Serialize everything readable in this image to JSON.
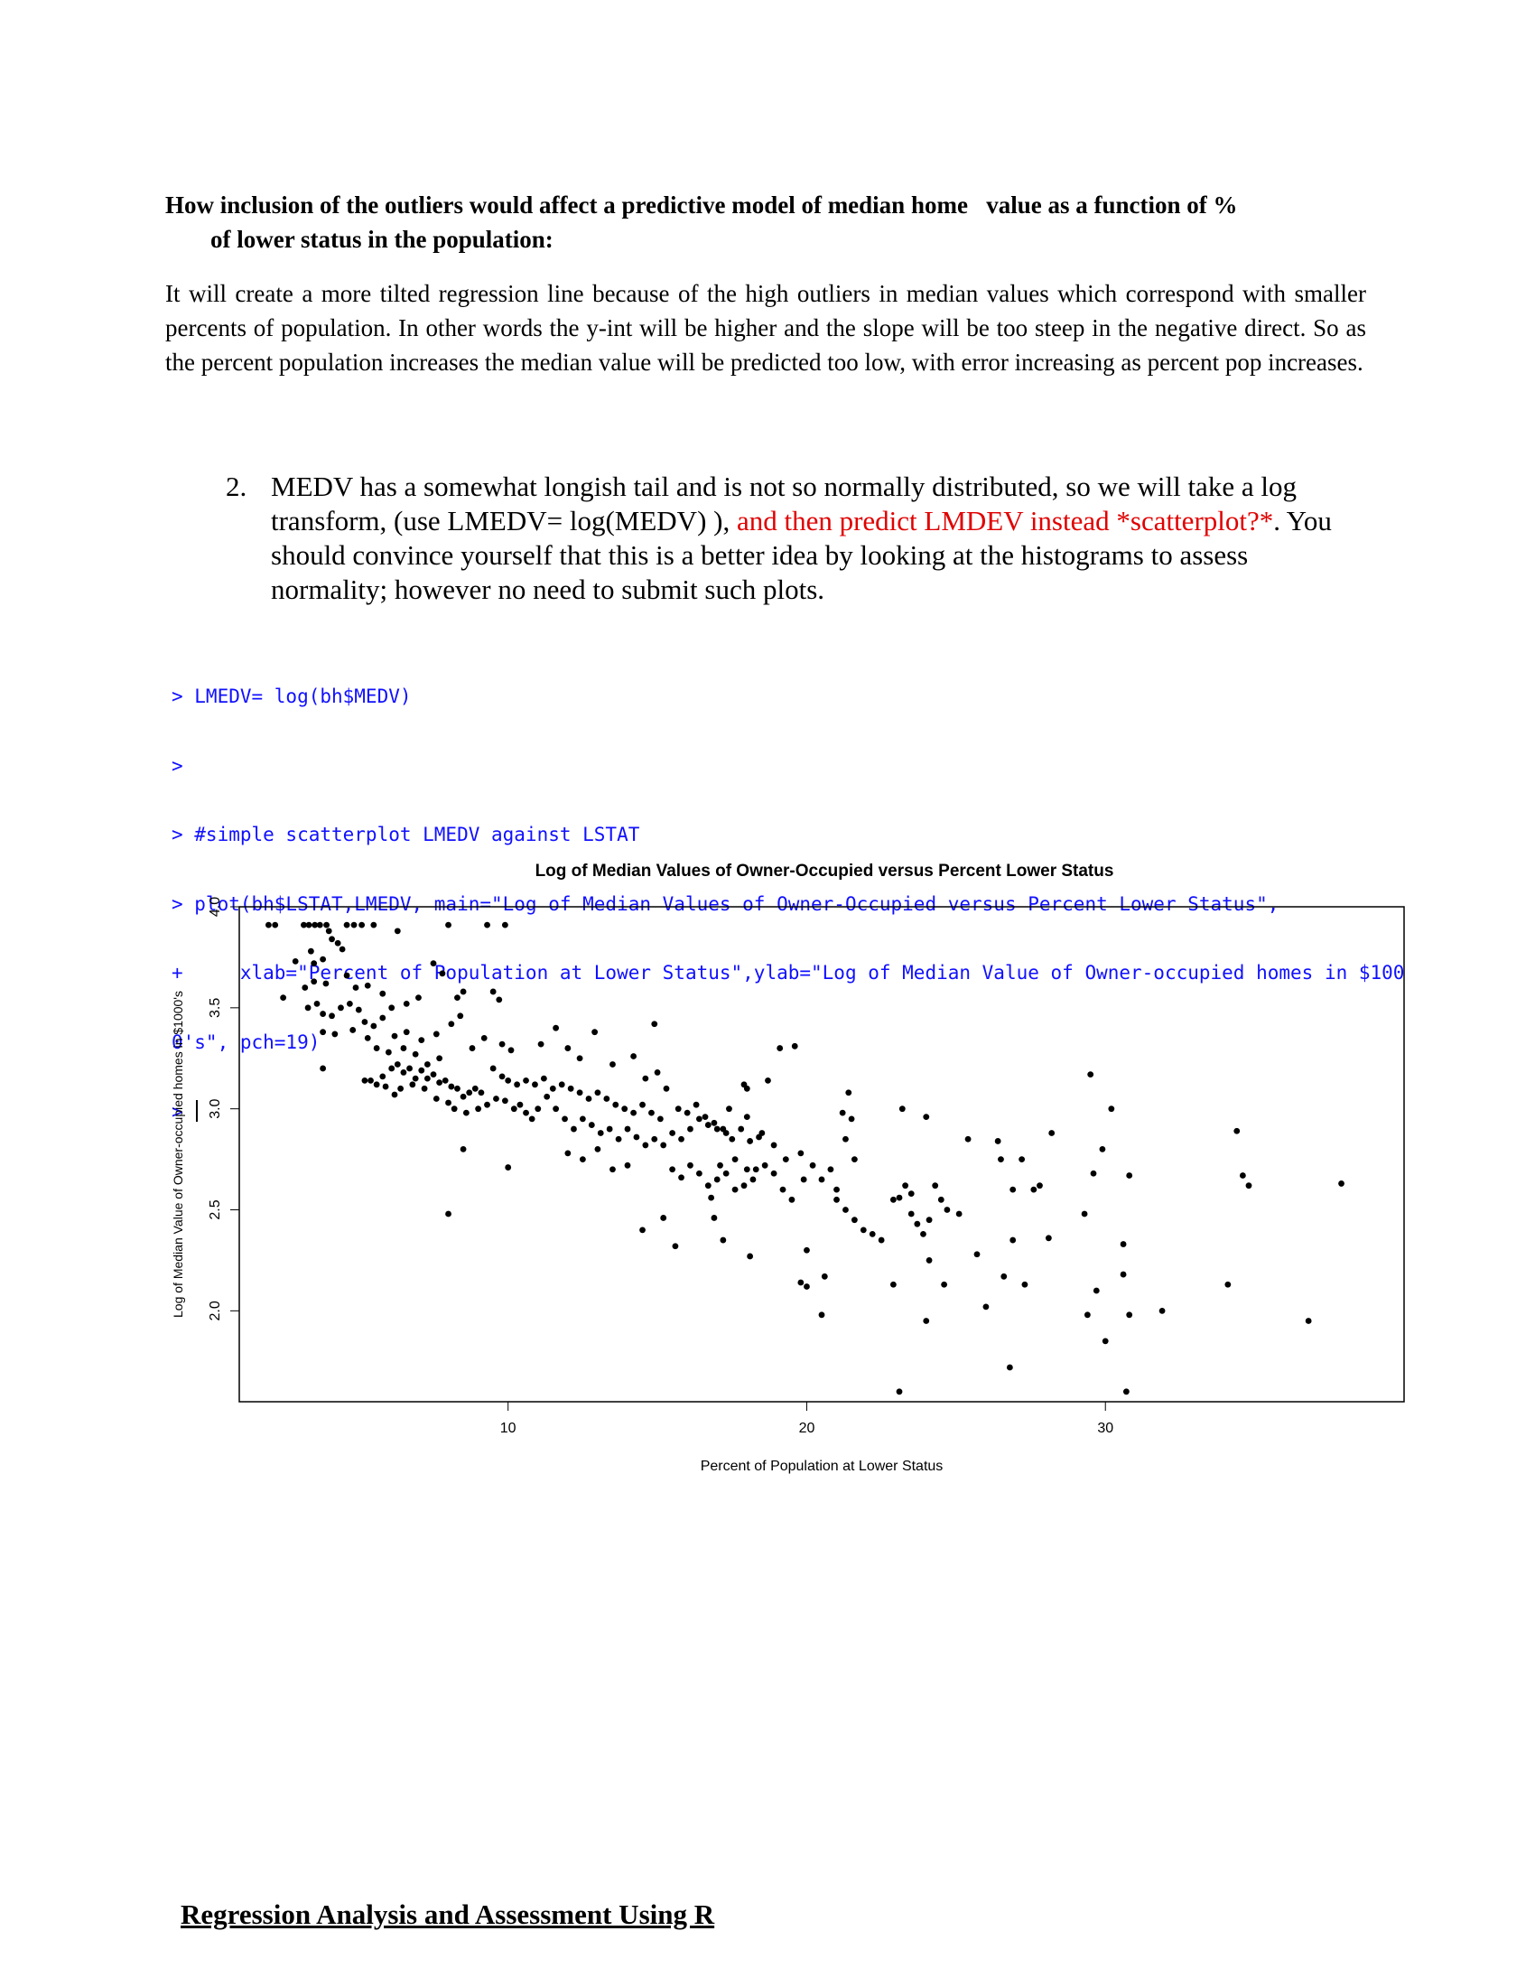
{
  "question_heading": {
    "line1": "How inclusion of the outliers would affect a predictive model of median home   value as a function of %",
    "line2": "of lower status in the population:"
  },
  "answer_paragraph": "It will create a more tilted regression line because of the high outliers in median values which correspond with smaller percents of population. In other words the y-int will be higher and the slope will be too steep in the negative direct. So as the percent population increases the median value will be predicted too low, with error increasing as percent pop increases.",
  "item2": {
    "number": "2.",
    "text_a": "MEDV has a somewhat longish tail and is not so normally distributed, so we will take a log transform, (use LMEDV= log(MEDV) ), ",
    "text_red": "and then predict LMDEV instead *scatterplot?*",
    "text_b": ".  You  should convince yourself that this is a better idea by looking at the histograms to assess  normality; however no need to submit such plots."
  },
  "console_lines": [
    "> LMEDV= log(bh$MEDV)",
    ">",
    "> #simple scatterplot LMEDV against LSTAT",
    "> plot(bh$LSTAT,LMEDV, main=\"Log of Median Values of Owner-Occupied versus Percent Lower Status\",",
    "+     xlab=\"Percent of Population at Lower Status\",ylab=\"Log of Median Value of Owner-occupied homes in $100",
    "0's\", pch=19)",
    "> "
  ],
  "footer_title": "Regression Analysis and Assessment Using R",
  "chart_data": {
    "type": "scatter",
    "title": "Log of Median Values of Owner-Occupied versus Percent Lower Status",
    "xlabel": "Percent of Population at Lower Status",
    "ylabel": "Log of Median Value of Owner-occupied homes in $1000's",
    "x_ticks": [
      10,
      20,
      30
    ],
    "y_ticks": [
      2.0,
      2.5,
      3.0,
      3.5,
      4.0
    ],
    "xlim": [
      1.0,
      40.0
    ],
    "ylim": [
      1.55,
      4.0
    ],
    "grid": false,
    "marker_color": "#000000",
    "points": [
      [
        1.98,
        3.91
      ],
      [
        2.2,
        3.91
      ],
      [
        2.47,
        3.55
      ],
      [
        2.88,
        3.73
      ],
      [
        3.16,
        3.91
      ],
      [
        3.33,
        3.91
      ],
      [
        3.53,
        3.91
      ],
      [
        3.7,
        3.91
      ],
      [
        3.92,
        3.91
      ],
      [
        4.0,
        3.88
      ],
      [
        4.1,
        3.84
      ],
      [
        4.3,
        3.82
      ],
      [
        3.4,
        3.78
      ],
      [
        3.5,
        3.72
      ],
      [
        3.8,
        3.74
      ],
      [
        4.45,
        3.79
      ],
      [
        4.6,
        3.91
      ],
      [
        4.84,
        3.91
      ],
      [
        5.1,
        3.91
      ],
      [
        5.5,
        3.91
      ],
      [
        6.3,
        3.88
      ],
      [
        8.0,
        3.91
      ],
      [
        9.3,
        3.91
      ],
      [
        9.9,
        3.91
      ],
      [
        3.2,
        3.6
      ],
      [
        3.5,
        3.63
      ],
      [
        3.9,
        3.62
      ],
      [
        4.6,
        3.66
      ],
      [
        4.9,
        3.6
      ],
      [
        5.3,
        3.61
      ],
      [
        5.8,
        3.57
      ],
      [
        6.1,
        3.5
      ],
      [
        6.6,
        3.52
      ],
      [
        7.0,
        3.55
      ],
      [
        7.5,
        3.72
      ],
      [
        7.8,
        3.67
      ],
      [
        8.3,
        3.55
      ],
      [
        8.5,
        3.58
      ],
      [
        9.5,
        3.58
      ],
      [
        9.7,
        3.54
      ],
      [
        3.3,
        3.5
      ],
      [
        3.6,
        3.52
      ],
      [
        3.8,
        3.47
      ],
      [
        4.1,
        3.46
      ],
      [
        4.4,
        3.5
      ],
      [
        4.7,
        3.52
      ],
      [
        5.0,
        3.49
      ],
      [
        5.2,
        3.43
      ],
      [
        5.5,
        3.41
      ],
      [
        5.8,
        3.45
      ],
      [
        6.2,
        3.36
      ],
      [
        6.6,
        3.38
      ],
      [
        7.1,
        3.34
      ],
      [
        7.6,
        3.37
      ],
      [
        8.1,
        3.42
      ],
      [
        8.4,
        3.46
      ],
      [
        8.8,
        3.3
      ],
      [
        9.2,
        3.35
      ],
      [
        9.8,
        3.32
      ],
      [
        10.1,
        3.29
      ],
      [
        3.8,
        3.38
      ],
      [
        4.2,
        3.37
      ],
      [
        4.8,
        3.39
      ],
      [
        5.3,
        3.35
      ],
      [
        5.6,
        3.3
      ],
      [
        6.0,
        3.28
      ],
      [
        6.5,
        3.3
      ],
      [
        6.9,
        3.27
      ],
      [
        7.3,
        3.22
      ],
      [
        7.7,
        3.25
      ],
      [
        3.8,
        3.2
      ],
      [
        5.2,
        3.14
      ],
      [
        5.6,
        3.12
      ],
      [
        5.8,
        3.16
      ],
      [
        6.1,
        3.2
      ],
      [
        6.3,
        3.22
      ],
      [
        6.5,
        3.18
      ],
      [
        6.7,
        3.2
      ],
      [
        6.9,
        3.15
      ],
      [
        7.1,
        3.19
      ],
      [
        7.3,
        3.15
      ],
      [
        7.5,
        3.17
      ],
      [
        7.7,
        3.13
      ],
      [
        7.9,
        3.14
      ],
      [
        8.1,
        3.11
      ],
      [
        8.3,
        3.1
      ],
      [
        8.5,
        3.06
      ],
      [
        8.7,
        3.08
      ],
      [
        8.9,
        3.1
      ],
      [
        9.1,
        3.08
      ],
      [
        5.4,
        3.14
      ],
      [
        5.9,
        3.11
      ],
      [
        6.2,
        3.07
      ],
      [
        6.4,
        3.1
      ],
      [
        6.8,
        3.12
      ],
      [
        7.2,
        3.1
      ],
      [
        7.6,
        3.05
      ],
      [
        8.0,
        3.03
      ],
      [
        8.2,
        3.0
      ],
      [
        8.6,
        2.98
      ],
      [
        9.0,
        3.0
      ],
      [
        9.3,
        3.02
      ],
      [
        9.6,
        3.05
      ],
      [
        9.9,
        3.04
      ],
      [
        10.2,
        3.0
      ],
      [
        10.4,
        3.02
      ],
      [
        10.6,
        2.98
      ],
      [
        10.8,
        2.95
      ],
      [
        11.0,
        3.0
      ],
      [
        11.3,
        3.06
      ],
      [
        9.5,
        3.2
      ],
      [
        9.8,
        3.16
      ],
      [
        10.0,
        3.14
      ],
      [
        10.3,
        3.12
      ],
      [
        10.6,
        3.14
      ],
      [
        10.9,
        3.12
      ],
      [
        11.2,
        3.15
      ],
      [
        11.5,
        3.1
      ],
      [
        11.8,
        3.12
      ],
      [
        12.1,
        3.1
      ],
      [
        12.4,
        3.08
      ],
      [
        12.7,
        3.05
      ],
      [
        13.0,
        3.08
      ],
      [
        13.3,
        3.05
      ],
      [
        13.6,
        3.02
      ],
      [
        13.9,
        3.0
      ],
      [
        14.2,
        2.98
      ],
      [
        14.5,
        3.02
      ],
      [
        14.8,
        2.98
      ],
      [
        15.1,
        2.95
      ],
      [
        11.1,
        3.32
      ],
      [
        11.6,
        3.4
      ],
      [
        12.0,
        3.3
      ],
      [
        12.4,
        3.25
      ],
      [
        12.9,
        3.38
      ],
      [
        13.5,
        3.22
      ],
      [
        14.2,
        3.26
      ],
      [
        14.6,
        3.15
      ],
      [
        15.0,
        3.18
      ],
      [
        15.3,
        3.1
      ],
      [
        11.6,
        3.0
      ],
      [
        11.9,
        2.95
      ],
      [
        12.2,
        2.9
      ],
      [
        12.5,
        2.95
      ],
      [
        12.8,
        2.92
      ],
      [
        13.1,
        2.88
      ],
      [
        13.4,
        2.9
      ],
      [
        13.7,
        2.85
      ],
      [
        14.0,
        2.9
      ],
      [
        14.3,
        2.86
      ],
      [
        14.6,
        2.82
      ],
      [
        14.9,
        2.85
      ],
      [
        15.2,
        2.82
      ],
      [
        15.5,
        2.88
      ],
      [
        15.8,
        2.85
      ],
      [
        16.1,
        2.9
      ],
      [
        16.4,
        2.95
      ],
      [
        16.7,
        2.92
      ],
      [
        17.0,
        2.9
      ],
      [
        17.3,
        2.88
      ],
      [
        12.0,
        2.78
      ],
      [
        12.5,
        2.75
      ],
      [
        13.0,
        2.8
      ],
      [
        13.5,
        2.7
      ],
      [
        14.0,
        2.72
      ],
      [
        10.0,
        2.71
      ],
      [
        8.5,
        2.8
      ],
      [
        8.0,
        2.48
      ],
      [
        14.9,
        3.42
      ],
      [
        18.0,
        3.1
      ],
      [
        15.7,
        3.0
      ],
      [
        16.0,
        2.98
      ],
      [
        16.3,
        3.02
      ],
      [
        16.6,
        2.96
      ],
      [
        16.9,
        2.93
      ],
      [
        17.2,
        2.9
      ],
      [
        17.5,
        2.85
      ],
      [
        17.8,
        2.9
      ],
      [
        18.1,
        2.84
      ],
      [
        18.4,
        2.86
      ],
      [
        18.7,
        3.14
      ],
      [
        19.1,
        3.3
      ],
      [
        19.6,
        3.31
      ],
      [
        17.9,
        3.12
      ],
      [
        17.4,
        3.0
      ],
      [
        18.0,
        2.96
      ],
      [
        18.5,
        2.88
      ],
      [
        18.9,
        2.82
      ],
      [
        19.3,
        2.75
      ],
      [
        19.8,
        2.78
      ],
      [
        15.5,
        2.7
      ],
      [
        15.8,
        2.66
      ],
      [
        16.1,
        2.72
      ],
      [
        16.4,
        2.68
      ],
      [
        16.7,
        2.62
      ],
      [
        17.0,
        2.65
      ],
      [
        17.3,
        2.68
      ],
      [
        17.6,
        2.6
      ],
      [
        17.9,
        2.62
      ],
      [
        18.2,
        2.65
      ],
      [
        16.8,
        2.56
      ],
      [
        17.1,
        2.72
      ],
      [
        17.6,
        2.75
      ],
      [
        18.0,
        2.7
      ],
      [
        18.3,
        2.7
      ],
      [
        18.6,
        2.72
      ],
      [
        18.9,
        2.68
      ],
      [
        19.2,
        2.6
      ],
      [
        19.5,
        2.55
      ],
      [
        19.9,
        2.65
      ],
      [
        14.5,
        2.4
      ],
      [
        15.2,
        2.46
      ],
      [
        15.6,
        2.32
      ],
      [
        16.9,
        2.46
      ],
      [
        17.2,
        2.35
      ],
      [
        18.1,
        2.27
      ],
      [
        20.2,
        2.72
      ],
      [
        20.5,
        2.65
      ],
      [
        20.8,
        2.7
      ],
      [
        21.0,
        2.6
      ],
      [
        21.2,
        2.98
      ],
      [
        21.4,
        3.08
      ],
      [
        21.5,
        2.95
      ],
      [
        21.3,
        2.85
      ],
      [
        21.6,
        2.75
      ],
      [
        21.0,
        2.55
      ],
      [
        21.3,
        2.5
      ],
      [
        21.6,
        2.45
      ],
      [
        21.9,
        2.4
      ],
      [
        22.2,
        2.38
      ],
      [
        20.0,
        2.3
      ],
      [
        19.8,
        2.14
      ],
      [
        20.0,
        2.12
      ],
      [
        20.5,
        1.98
      ],
      [
        20.6,
        2.17
      ],
      [
        22.5,
        2.35
      ],
      [
        22.9,
        2.55
      ],
      [
        23.1,
        2.56
      ],
      [
        23.3,
        2.62
      ],
      [
        23.5,
        2.58
      ],
      [
        23.2,
        3.0
      ],
      [
        24.0,
        2.96
      ],
      [
        23.5,
        2.48
      ],
      [
        23.7,
        2.43
      ],
      [
        23.9,
        2.38
      ],
      [
        24.1,
        2.45
      ],
      [
        24.3,
        2.62
      ],
      [
        24.5,
        2.55
      ],
      [
        24.7,
        2.5
      ],
      [
        25.1,
        2.48
      ],
      [
        24.1,
        2.25
      ],
      [
        24.6,
        2.13
      ],
      [
        22.9,
        2.13
      ],
      [
        24.0,
        1.95
      ],
      [
        23.1,
        1.6
      ],
      [
        25.4,
        2.85
      ],
      [
        25.7,
        2.28
      ],
      [
        26.0,
        2.02
      ],
      [
        26.4,
        2.84
      ],
      [
        26.5,
        2.75
      ],
      [
        26.9,
        2.6
      ],
      [
        26.6,
        2.17
      ],
      [
        26.8,
        1.72
      ],
      [
        27.2,
        2.75
      ],
      [
        27.6,
        2.6
      ],
      [
        27.8,
        2.62
      ],
      [
        28.2,
        2.88
      ],
      [
        28.1,
        2.36
      ],
      [
        27.3,
        2.13
      ],
      [
        26.9,
        2.35
      ],
      [
        29.3,
        2.48
      ],
      [
        29.5,
        3.17
      ],
      [
        29.6,
        2.68
      ],
      [
        29.9,
        2.8
      ],
      [
        29.4,
        1.98
      ],
      [
        29.7,
        2.1
      ],
      [
        30.0,
        1.85
      ],
      [
        30.6,
        2.33
      ],
      [
        30.6,
        2.18
      ],
      [
        30.8,
        2.67
      ],
      [
        30.8,
        1.98
      ],
      [
        30.7,
        1.6
      ],
      [
        31.9,
        2.0
      ],
      [
        34.1,
        2.13
      ],
      [
        34.4,
        2.89
      ],
      [
        34.6,
        2.67
      ],
      [
        34.8,
        2.62
      ],
      [
        36.8,
        1.95
      ],
      [
        37.9,
        2.63
      ],
      [
        30.2,
        3.0
      ]
    ]
  }
}
